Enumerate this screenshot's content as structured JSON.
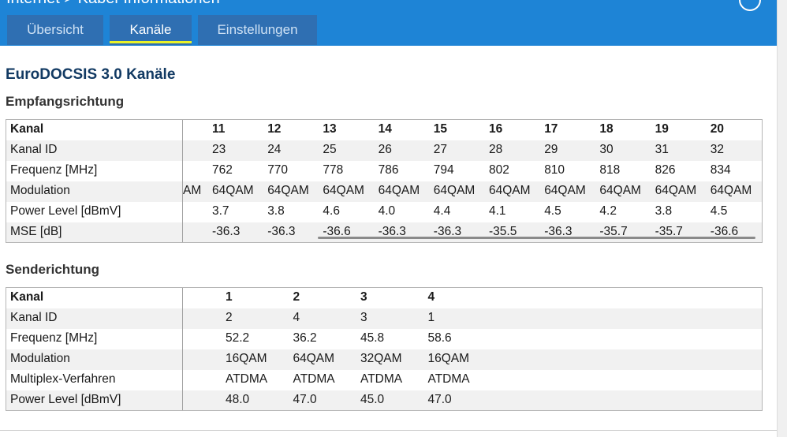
{
  "header": {
    "title": "Internet > Kabel-Informationen",
    "tabs": [
      {
        "label": "Übersicht",
        "active": false
      },
      {
        "label": "Kanäle",
        "active": true
      },
      {
        "label": "Einstellungen",
        "active": false
      }
    ]
  },
  "section_title": "EuroDOCSIS 3.0 Kanäle",
  "downstream": {
    "title": "Empfangsrichtung",
    "row_labels": [
      "Kanal",
      "Kanal ID",
      "Frequenz [MHz]",
      "Modulation",
      "Power Level [dBmV]",
      "MSE [dB]"
    ],
    "partial_modulation": "AM",
    "columns": [
      {
        "values": [
          "11",
          "23",
          "762",
          "64QAM",
          "3.7",
          "-36.3"
        ]
      },
      {
        "values": [
          "12",
          "24",
          "770",
          "64QAM",
          "3.8",
          "-36.3"
        ]
      },
      {
        "values": [
          "13",
          "25",
          "778",
          "64QAM",
          "4.6",
          "-36.6"
        ]
      },
      {
        "values": [
          "14",
          "26",
          "786",
          "64QAM",
          "4.0",
          "-36.3"
        ]
      },
      {
        "values": [
          "15",
          "27",
          "794",
          "64QAM",
          "4.4",
          "-36.3"
        ]
      },
      {
        "values": [
          "16",
          "28",
          "802",
          "64QAM",
          "4.1",
          "-35.5"
        ]
      },
      {
        "values": [
          "17",
          "29",
          "810",
          "64QAM",
          "4.5",
          "-36.3"
        ]
      },
      {
        "values": [
          "18",
          "30",
          "818",
          "64QAM",
          "4.2",
          "-35.7"
        ]
      },
      {
        "values": [
          "19",
          "31",
          "826",
          "64QAM",
          "3.8",
          "-35.7"
        ]
      },
      {
        "values": [
          "20",
          "32",
          "834",
          "64QAM",
          "4.5",
          "-36.6"
        ]
      }
    ]
  },
  "upstream": {
    "title": "Senderichtung",
    "row_labels": [
      "Kanal",
      "Kanal ID",
      "Frequenz [MHz]",
      "Modulation",
      "Multiplex-Verfahren",
      "Power Level [dBmV]"
    ],
    "columns": [
      {
        "values": [
          "1",
          "2",
          "52.2",
          "16QAM",
          "ATDMA",
          "48.0"
        ]
      },
      {
        "values": [
          "2",
          "4",
          "36.2",
          "64QAM",
          "ATDMA",
          "47.0"
        ]
      },
      {
        "values": [
          "3",
          "3",
          "45.8",
          "32QAM",
          "ATDMA",
          "45.0"
        ]
      },
      {
        "values": [
          "4",
          "1",
          "58.6",
          "16QAM",
          "ATDMA",
          "47.0"
        ]
      }
    ]
  },
  "colors": {
    "header_blue": "#1e84d6",
    "tab_blue": "#2f6fb2",
    "active_underline": "#e9f229",
    "section_title": "#123a63"
  },
  "icons": {
    "close": "close-circle-icon"
  }
}
